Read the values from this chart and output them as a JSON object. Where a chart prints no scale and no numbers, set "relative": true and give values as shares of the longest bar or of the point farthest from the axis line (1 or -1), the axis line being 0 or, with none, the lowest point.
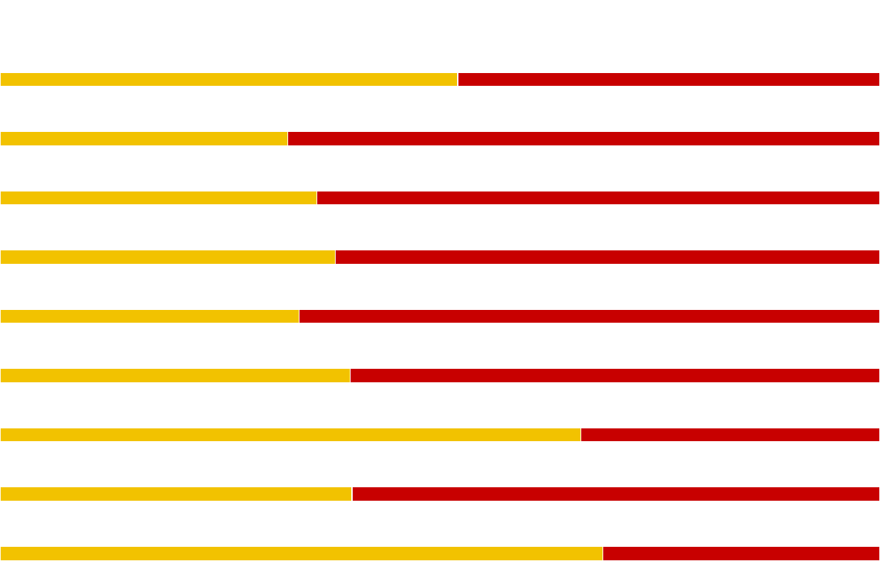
{
  "chart_data": {
    "type": "bar",
    "orientation": "horizontal",
    "stacked": true,
    "relative": true,
    "categories": [
      null,
      null,
      null,
      null,
      null,
      null,
      null,
      null,
      null
    ],
    "series": [
      {
        "color": "#f2c200",
        "values": [
          0.52,
          0.327,
          0.36,
          0.381,
          0.34,
          0.398,
          0.66,
          0.4,
          0.685
        ]
      },
      {
        "color": "#c80000",
        "values": [
          0.48,
          0.673,
          0.64,
          0.619,
          0.66,
          0.602,
          0.34,
          0.6,
          0.315
        ]
      }
    ]
  }
}
